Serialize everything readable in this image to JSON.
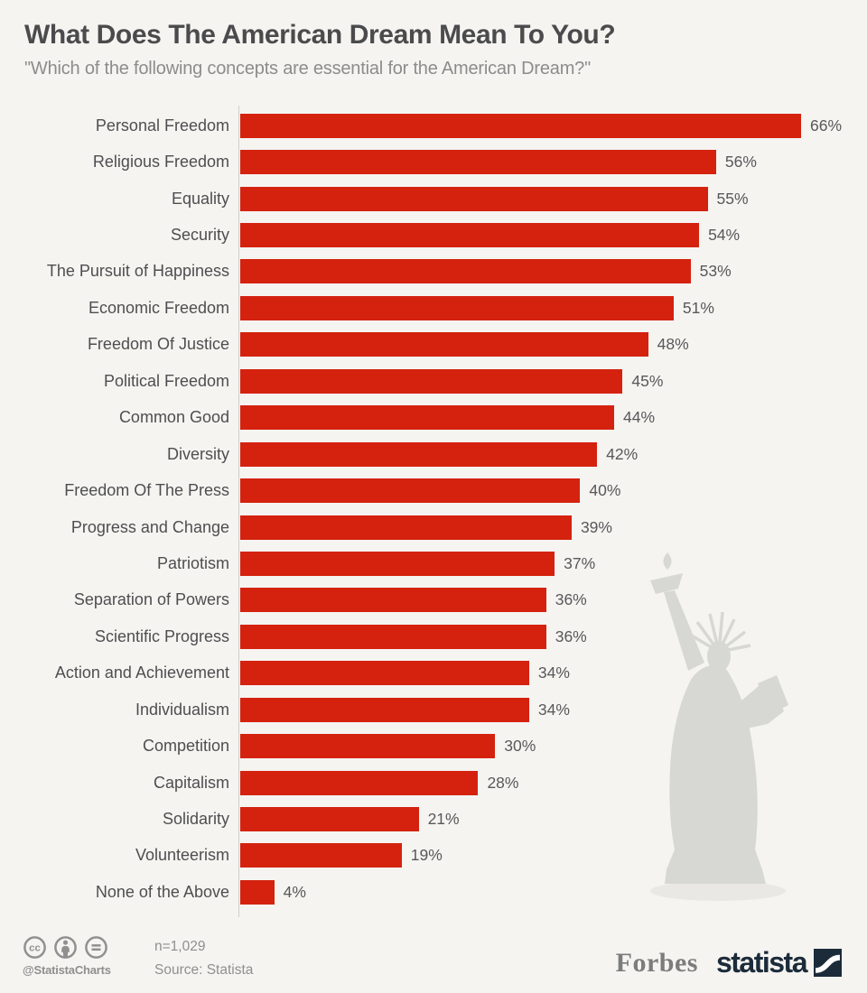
{
  "header": {
    "title": "What Does The American Dream Mean To You?",
    "subtitle": "\"Which of the following concepts are essential for the American Dream?\""
  },
  "chart_data": {
    "type": "bar",
    "orientation": "horizontal",
    "title": "What Does The American Dream Mean To You?",
    "subtitle": "\"Which of the following concepts are essential for the American Dream?\"",
    "categories": [
      "Personal Freedom",
      "Religious Freedom",
      "Equality",
      "Security",
      "The Pursuit of Happiness",
      "Economic Freedom",
      "Freedom Of Justice",
      "Political Freedom",
      "Common Good",
      "Diversity",
      "Freedom Of The Press",
      "Progress and Change",
      "Patriotism",
      "Separation of Powers",
      "Scientific Progress",
      "Action and Achievement",
      "Individualism",
      "Competition",
      "Capitalism",
      "Solidarity",
      "Volunteerism",
      "None of the Above"
    ],
    "values": [
      66,
      56,
      55,
      54,
      53,
      51,
      48,
      45,
      44,
      42,
      40,
      39,
      37,
      36,
      36,
      34,
      34,
      30,
      28,
      21,
      19,
      4
    ],
    "value_suffix": "%",
    "xlabel": "",
    "ylabel": "",
    "xlim": [
      0,
      66
    ],
    "grid": false,
    "legend": false,
    "value_labels": true,
    "bar_color": "#d4220f"
  },
  "decor": {
    "statue_illustration": "statue-of-liberty-silhouette"
  },
  "footer": {
    "license_icons": [
      "cc-icon",
      "attribution-person-icon",
      "no-derivatives-icon"
    ],
    "handle": "@StatistaCharts",
    "sample": "n=1,029",
    "source": "Source: Statista",
    "forbes_logo": "Forbes",
    "statista_logo": "statista"
  },
  "colors": {
    "background": "#f5f4f1",
    "bar": "#d4220f",
    "title_text": "#4b4b4d",
    "subtitle_text": "#8c8c8c",
    "category_text": "#4e4e50",
    "value_text": "#58585a",
    "axis_line": "#cfcfcc",
    "footer_text": "#8f8f8f",
    "forbes_gray": "#7c7c7c",
    "statista_navy": "#1c2b3a",
    "statue_gray": "#d7d7d4"
  }
}
